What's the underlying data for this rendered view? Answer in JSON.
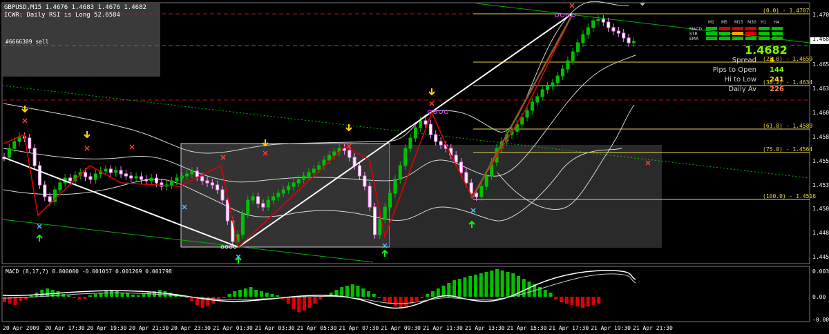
{
  "chart": {
    "title_line": "GBPUSD,M15  1.4676 1.4683 1.4676 1.4682",
    "indicator_line": "ICWR: Daily RSI is Long 52.6584",
    "order_label": "#6666309 sell",
    "macd_label": "MACD (8,17,7) 0.000000 -0.001057 0.001269 0.001798"
  },
  "y_axis_labels": [
    "1.4707",
    "1.4682",
    "1.4655",
    "1.4630",
    "1.4605",
    "1.4580",
    "1.4555",
    "1.4530",
    "1.4505",
    "1.4480",
    "1.4455"
  ],
  "macd_axis_labels": [
    "0.003005",
    "0.00",
    "-0.002379"
  ],
  "x_axis_labels": [
    "20 Apr 2009",
    "20 Apr 17:30",
    "20 Apr 19:30",
    "20 Apr 21:30",
    "20 Apr 23:30",
    "21 Apr 01:30",
    "21 Apr 03:30",
    "21 Apr 05:30",
    "21 Apr 07:30",
    "21 Apr 09:30",
    "21 Apr 11:30",
    "21 Apr 13:30",
    "21 Apr 15:30",
    "21 Apr 17:30",
    "21 Apr 19:30",
    "21 Apr 21:30"
  ],
  "fib_levels": [
    "(0.0) - 1.4707",
    "(25.0) - 1.4659",
    "(38.2) - 1.4634",
    "(61.8) - 1.4589",
    "(75.0) - 1.4564",
    "(100.0) - 1.4516"
  ],
  "info_panel": {
    "price": "1.4682",
    "rows": [
      {
        "label": "Spread",
        "value": "4",
        "color": "#ffd700"
      },
      {
        "label": "Pips to Open",
        "value": "144",
        "color": "#7cfc00"
      },
      {
        "label": "Hi to Low",
        "value": "241",
        "color": "#ffd700"
      },
      {
        "label": "Daily Av",
        "value": "226",
        "color": "#ff7f50"
      }
    ]
  },
  "trend_matrix": {
    "columns": [
      "M1",
      "M5",
      "M15",
      "M30",
      "H1",
      "H4"
    ],
    "rows": [
      {
        "label": "MACD",
        "cells": [
          "#00c000",
          "#e00000",
          "#e00000",
          "#e00000",
          "#00c000",
          "#00c000"
        ]
      },
      {
        "label": "STR",
        "cells": [
          "#00c000",
          "#00c000",
          "#ffa500",
          "#e00000",
          "#00c000",
          "#00c000"
        ]
      },
      {
        "label": "EMA",
        "cells": [
          "#00c000",
          "#00c000",
          "#00c000",
          "#00c000",
          "#00c000",
          "#00c000"
        ]
      }
    ]
  },
  "colors": {
    "bull": "#00c000",
    "bear": "#ff8aff",
    "bear_fill": "#ffffff",
    "fib": "#e8d84a",
    "zigzag": "#e00000",
    "trend_white": "#ffffff",
    "macd_up": "#00c000",
    "macd_down": "#e00000",
    "up_arrow": "#00ff00",
    "down_arrow": "#ffd700"
  }
}
